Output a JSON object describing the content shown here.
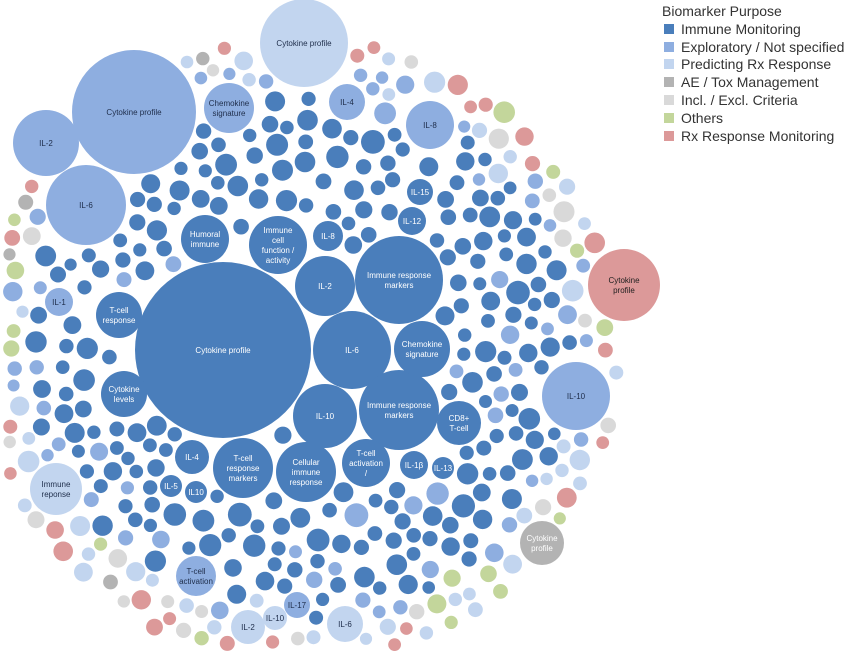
{
  "colors": {
    "immune": "#4a7ebb",
    "exploratory": "#8eaee0",
    "predicting": "#c2d5ef",
    "ae": "#b3b3b3",
    "incl": "#d9d9d9",
    "others": "#c3d69b",
    "rx": "#dc9999"
  },
  "chart_data": {
    "type": "bubble",
    "legend": {
      "title": "Biomarker Purpose",
      "placement": "top-right",
      "items": [
        {
          "key": "immune",
          "label": "Immune Monitoring"
        },
        {
          "key": "exploratory",
          "label": "Exploratory / Not specified"
        },
        {
          "key": "predicting",
          "label": "Predicting Rx Response"
        },
        {
          "key": "ae",
          "label": "AE / Tox Management"
        },
        {
          "key": "incl",
          "label": "Incl. / Excl. Criteria"
        },
        {
          "key": "others",
          "label": "Others"
        },
        {
          "key": "rx",
          "label": "Rx Response Monitoring"
        }
      ]
    },
    "labeled_bubbles": [
      {
        "label": "Cytokine profile",
        "category": "immune",
        "size": 100
      },
      {
        "label": "Immune response markers",
        "category": "immune",
        "size": 26
      },
      {
        "label": "IL-6",
        "category": "immune",
        "size": 23
      },
      {
        "label": "Immune response markers",
        "category": "immune",
        "size": 21
      },
      {
        "label": "IL-10",
        "category": "immune",
        "size": 15
      },
      {
        "label": "IL-2",
        "category": "immune",
        "size": 14
      },
      {
        "label": "Chemokine signature",
        "category": "immune",
        "size": 13
      },
      {
        "label": "Immune cell function / activity",
        "category": "immune",
        "size": 13
      },
      {
        "label": "T-cell response markers",
        "category": "immune",
        "size": 16
      },
      {
        "label": "Cellular immune response",
        "category": "immune",
        "size": 16
      },
      {
        "label": "T-cell activation /",
        "category": "immune",
        "size": 9
      },
      {
        "label": "Humoral immune",
        "category": "immune",
        "size": 8
      },
      {
        "label": "T-cell response",
        "category": "immune",
        "size": 8
      },
      {
        "label": "Cytokine levels",
        "category": "immune",
        "size": 8
      },
      {
        "label": "CD8+ T-cell",
        "category": "immune",
        "size": 6
      },
      {
        "label": "IL-8",
        "category": "immune",
        "size": 4
      },
      {
        "label": "IL-4",
        "category": "immune",
        "size": 5
      },
      {
        "label": "IL-12",
        "category": "immune",
        "size": 3
      },
      {
        "label": "IL-15",
        "category": "immune",
        "size": 2
      },
      {
        "label": "IL-1β",
        "category": "immune",
        "size": 3
      },
      {
        "label": "IL-13",
        "category": "immune",
        "size": 2
      },
      {
        "label": "IL-5",
        "category": "immune",
        "size": 2
      },
      {
        "label": "IL10",
        "category": "immune",
        "size": 2
      },
      {
        "label": "Cytokine profile",
        "category": "exploratory",
        "size": 42
      },
      {
        "label": "IL-6",
        "category": "exploratory",
        "size": 14
      },
      {
        "label": "IL-2",
        "category": "exploratory",
        "size": 10
      },
      {
        "label": "Chemokine signature",
        "category": "exploratory",
        "size": 5
      },
      {
        "label": "IL-8",
        "category": "exploratory",
        "size": 4
      },
      {
        "label": "IL-4",
        "category": "exploratory",
        "size": 3
      },
      {
        "label": "IL-1",
        "category": "exploratory",
        "size": 2
      },
      {
        "label": "T-cell activation",
        "category": "exploratory",
        "size": 3
      },
      {
        "label": "IL-17",
        "category": "exploratory",
        "size": 2
      },
      {
        "label": "IL-10",
        "category": "exploratory",
        "size": 9
      },
      {
        "label": "Cytokine profile",
        "category": "predicting",
        "size": 14
      },
      {
        "label": "Immune reponse",
        "category": "predicting",
        "size": 5
      },
      {
        "label": "IL-2",
        "category": "predicting",
        "size": 2
      },
      {
        "label": "IL-10",
        "category": "predicting",
        "size": 1
      },
      {
        "label": "IL-6",
        "category": "predicting",
        "size": 3
      },
      {
        "label": "Cytokine profile",
        "category": "rx",
        "size": 11
      },
      {
        "label": "Cytokine profile",
        "category": "ae",
        "size": 4
      }
    ]
  }
}
